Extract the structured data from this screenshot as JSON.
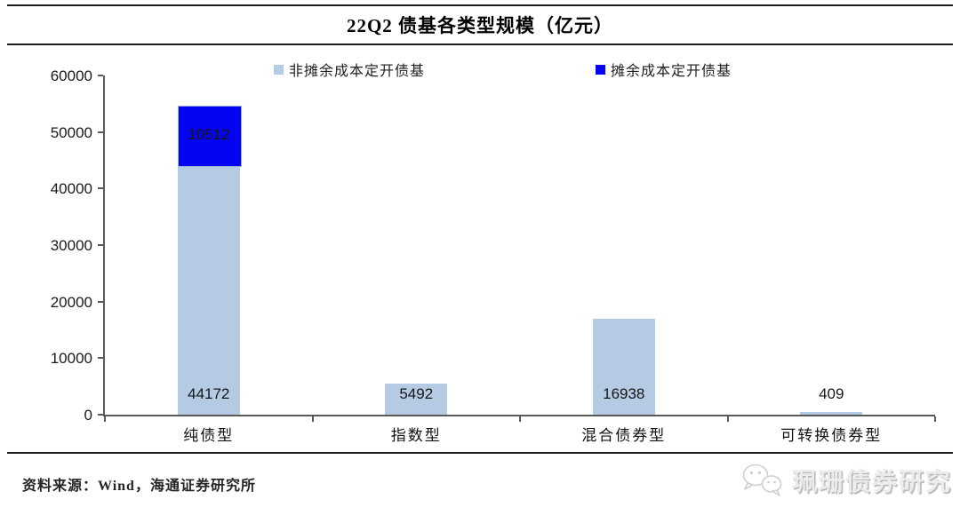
{
  "title": "22Q2 债基各类型规模（亿元）",
  "source_note": "资料来源：Wind，海通证券研究所",
  "watermark": {
    "icon": "wechat-icon",
    "label": "珮珊债券研究"
  },
  "colors": {
    "light_series": "#B5CAE3",
    "dark_series": "#0404F0",
    "dark_series_border": "#9FAEE0",
    "axis": "#595959",
    "rule": "#1C1C1C",
    "watermark_gray": "#ECECEC"
  },
  "chart_data": {
    "type": "bar",
    "stacked": true,
    "title": "22Q2 债基各类型规模（亿元）",
    "categories": [
      "纯债型",
      "指数型",
      "混合债券型",
      "可转换债券型"
    ],
    "series": [
      {
        "name": "非摊余成本定开债基",
        "color": "#B5CAE3",
        "values": [
          44172,
          5492,
          16938,
          409
        ]
      },
      {
        "name": "摊余成本定开债基",
        "color": "#0404F0",
        "values": [
          10512,
          0,
          0,
          0
        ]
      }
    ],
    "data_labels": {
      "非摊余成本定开债基": [
        "44172",
        "5492",
        "16938",
        "409"
      ],
      "摊余成本定开债基": [
        "10512",
        "",
        "",
        ""
      ]
    },
    "ylabel": "",
    "xlabel": "",
    "ylim": [
      0,
      60000
    ],
    "yticks": [
      0,
      10000,
      20000,
      30000,
      40000,
      50000,
      60000
    ],
    "legend_position": "top",
    "grid": false
  }
}
